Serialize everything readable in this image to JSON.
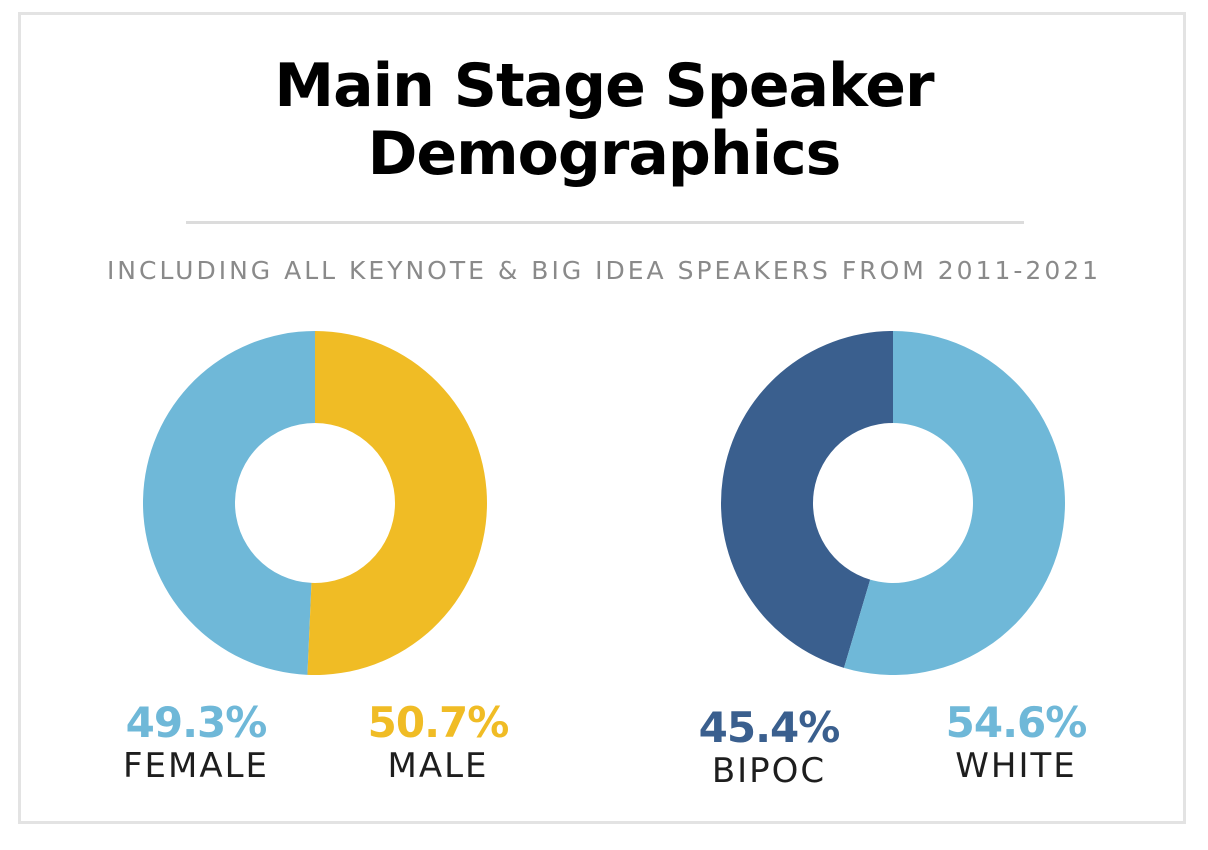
{
  "title_line1": "Main Stage Speaker",
  "title_line2": "Demographics",
  "subtitle": "Including all Keynote & Big Idea Speakers from 2011-2021",
  "chart_data": [
    {
      "type": "pie",
      "donut": true,
      "slices": [
        {
          "label": "FEMALE",
          "value": 49.3,
          "display": "49.3%",
          "color": "#6fb8d8"
        },
        {
          "label": "MALE",
          "value": 50.7,
          "display": "50.7%",
          "color": "#f0bc25"
        }
      ]
    },
    {
      "type": "pie",
      "donut": true,
      "slices": [
        {
          "label": "BIPOC",
          "value": 45.4,
          "display": "45.4%",
          "color": "#3a5f8e"
        },
        {
          "label": "WHITE",
          "value": 54.6,
          "display": "54.6%",
          "color": "#6fb8d8"
        }
      ]
    }
  ]
}
